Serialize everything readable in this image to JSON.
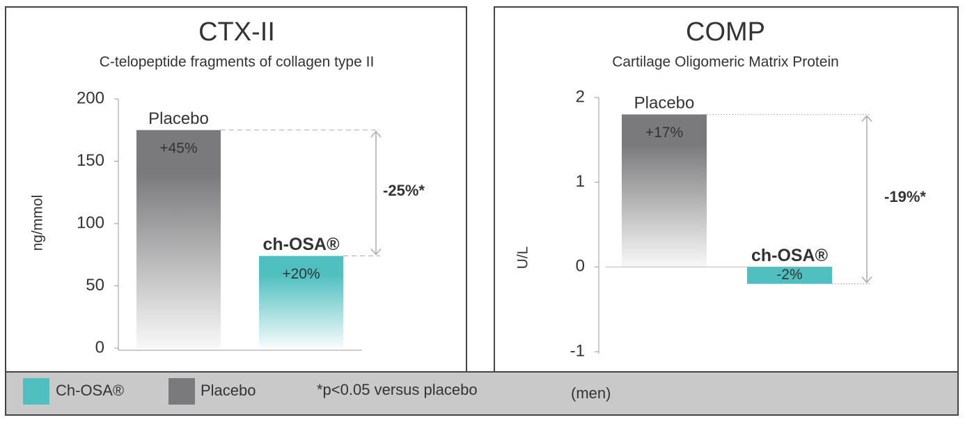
{
  "chart_data": [
    {
      "type": "bar",
      "title": "CTX-II",
      "subtitle": "C-telopeptide fragments of collagen type II",
      "y_label": "ng/mmol",
      "categories": [
        "Placebo",
        "ch-OSA®"
      ],
      "values": [
        175,
        74
      ],
      "value_labels": [
        "+45%",
        "+20%"
      ],
      "colors": [
        "#7a7a7c",
        "#4fbfbf"
      ],
      "ylim": [
        0,
        200
      ],
      "yticks": [
        0,
        50,
        100,
        150,
        200
      ],
      "annotation": "-25%*"
    },
    {
      "type": "bar",
      "title": "COMP",
      "subtitle": "Cartilage Oligomeric Matrix Protein",
      "y_label": "U/L",
      "categories": [
        "Placebo",
        "ch-OSA®"
      ],
      "values": [
        1.8,
        -0.2
      ],
      "value_labels": [
        "+17%",
        "-2%"
      ],
      "colors": [
        "#7a7a7c",
        "#4fbfbf"
      ],
      "ylim": [
        -1,
        2
      ],
      "yticks": [
        -1,
        0,
        1,
        2
      ],
      "annotation": "-19%*"
    }
  ],
  "legend": {
    "items": [
      {
        "label": "Ch-OSA®",
        "color": "#4fbfbf"
      },
      {
        "label": "Placebo",
        "color": "#7a7a7c"
      }
    ],
    "note": "*p<0.05 versus placebo",
    "population": "(men)"
  }
}
